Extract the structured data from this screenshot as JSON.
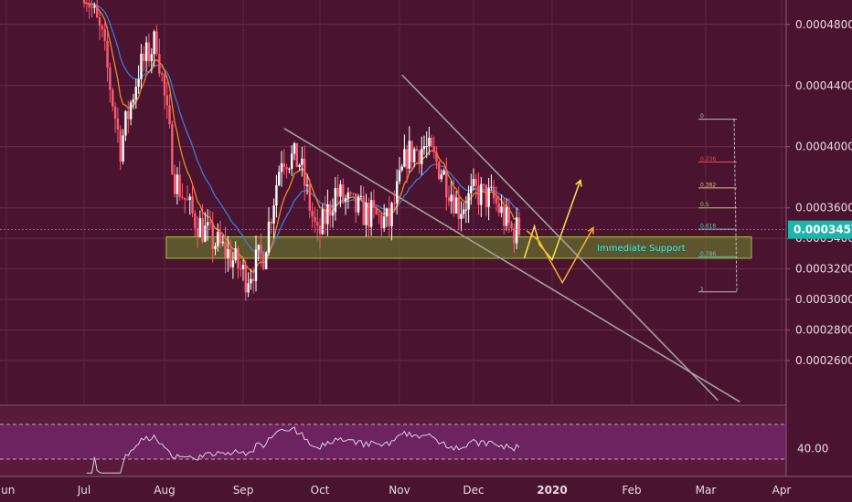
{
  "chart_data": [
    {
      "type": "candlestick",
      "title": "",
      "xlabel": "",
      "ylabel": "",
      "ylim": [
        0.000232,
        0.000496
      ],
      "y_ticks": [
        "0.0004800",
        "0.0004400",
        "0.0004000",
        "0.0003600",
        "0.0003400",
        "0.0003200",
        "0.0003000",
        "0.0002800",
        "0.0002600"
      ],
      "x_ticks": [
        "Jun",
        "Jul",
        "Aug",
        "Sep",
        "Oct",
        "Nov",
        "Dec",
        "2020",
        "Feb",
        "Mar",
        "Apr"
      ],
      "bold_x_ticks": [
        "2020"
      ],
      "current_price": "0.0003457",
      "close_series": [
        {
          "date": "2019-07-01",
          "value": 0.000505
        },
        {
          "date": "2019-07-08",
          "value": 0.00047
        },
        {
          "date": "2019-07-15",
          "value": 0.0004
        },
        {
          "date": "2019-07-22",
          "value": 0.00045
        },
        {
          "date": "2019-07-29",
          "value": 0.00047
        },
        {
          "date": "2019-08-05",
          "value": 0.00038
        },
        {
          "date": "2019-08-12",
          "value": 0.000355
        },
        {
          "date": "2019-08-19",
          "value": 0.00034
        },
        {
          "date": "2019-08-26",
          "value": 0.00033
        },
        {
          "date": "2019-09-02",
          "value": 0.000315
        },
        {
          "date": "2019-09-09",
          "value": 0.00033
        },
        {
          "date": "2019-09-16",
          "value": 0.000395
        },
        {
          "date": "2019-09-23",
          "value": 0.00039
        },
        {
          "date": "2019-09-30",
          "value": 0.00034
        },
        {
          "date": "2019-10-07",
          "value": 0.00037
        },
        {
          "date": "2019-10-14",
          "value": 0.00036
        },
        {
          "date": "2019-10-21",
          "value": 0.000355
        },
        {
          "date": "2019-10-28",
          "value": 0.00035
        },
        {
          "date": "2019-11-04",
          "value": 0.000395
        },
        {
          "date": "2019-11-11",
          "value": 0.0004
        },
        {
          "date": "2019-11-18",
          "value": 0.000385
        },
        {
          "date": "2019-11-25",
          "value": 0.00036
        },
        {
          "date": "2019-12-02",
          "value": 0.00037
        },
        {
          "date": "2019-12-09",
          "value": 0.000365
        },
        {
          "date": "2019-12-16",
          "value": 0.000345
        },
        {
          "date": "2019-12-19",
          "value": 0.0003457
        }
      ],
      "support_zone": {
        "label": "Immediate Support",
        "low": 0.000327,
        "high": 0.000341
      },
      "fibonacci": {
        "levels": [
          {
            "label": "0",
            "value": 0.000418,
            "color": "#b8b8b8"
          },
          {
            "label": "0.236",
            "value": 0.00039,
            "color": "#e05050"
          },
          {
            "label": "0.382",
            "value": 0.000373,
            "color": "#d9c26a"
          },
          {
            "label": "0.5",
            "value": 0.00036,
            "color": "#9ad64a"
          },
          {
            "label": "0.618",
            "value": 0.000346,
            "color": "#56c8b8"
          },
          {
            "label": "0.786",
            "value": 0.000328,
            "color": "#56c8b8"
          },
          {
            "label": "1",
            "value": 0.000305,
            "color": "#b8b8b8"
          }
        ]
      },
      "colors": {
        "up": "#ffffff",
        "down": "#ff5a6e",
        "ema_fast": "#f08a24",
        "ema_slow": "#3a7bd5",
        "trendline": "#a0a0a0",
        "support": "#6e8a2c",
        "projection_a": "#ffe04a",
        "projection_b": "#ffab2e"
      }
    },
    {
      "type": "line",
      "name": "RSI",
      "y_ticks": [
        "40.00"
      ],
      "bands": [
        30,
        70
      ]
    }
  ]
}
